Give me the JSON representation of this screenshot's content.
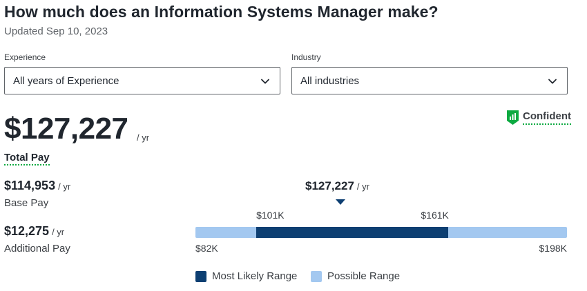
{
  "header": {
    "title": "How much does an Information Systems Manager make?",
    "updated": "Updated Sep 10, 2023"
  },
  "filters": {
    "experience": {
      "label": "Experience",
      "value": "All years of Experience"
    },
    "industry": {
      "label": "Industry",
      "value": "All industries"
    }
  },
  "pay": {
    "total": "$127,227",
    "total_unit": "/ yr",
    "total_label": "Total Pay",
    "confidence": "Confident",
    "base": "$114,953",
    "base_unit": "/ yr",
    "base_label": "Base Pay",
    "additional": "$12,275",
    "additional_unit": "/ yr",
    "additional_label": "Additional Pay"
  },
  "range": {
    "median_label": "$127,227",
    "median_unit": "/ yr",
    "median_value": 127227,
    "min_label": "$82K",
    "max_label": "$198K",
    "likely_low_label": "$101K",
    "likely_high_label": "$161K",
    "min_value": 82000,
    "max_value": 198000,
    "likely_low_value": 101000,
    "likely_high_value": 161000,
    "colors": {
      "likely": "#0d3f72",
      "possible": "#a3c8f0"
    }
  },
  "legend": {
    "likely_label": "Most Likely Range",
    "possible_label": "Possible Range"
  },
  "colors": {
    "accent_green": "#0caa41",
    "dark_blue": "#0d3f72",
    "light_blue": "#a3c8f0"
  },
  "icons": {
    "confidence": "shield-chart-icon",
    "dropdown": "chevron-down-icon"
  }
}
